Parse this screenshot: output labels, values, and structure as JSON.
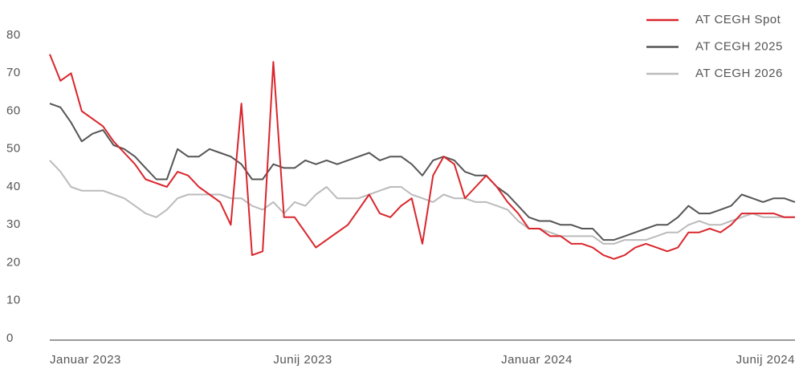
{
  "chart_data": {
    "type": "line",
    "x": [
      0,
      0.25,
      0.5,
      0.75,
      1,
      1.25,
      1.5,
      1.75,
      2,
      2.25,
      2.5,
      2.75,
      3,
      3.25,
      3.5,
      3.75,
      4,
      4.25,
      4.5,
      4.75,
      5,
      5.25,
      5.5,
      5.75,
      6,
      6.25,
      6.5,
      6.75,
      7,
      7.25,
      7.5,
      7.75,
      8,
      8.25,
      8.5,
      8.75,
      9,
      9.25,
      9.5,
      9.75,
      10,
      10.25,
      10.5,
      10.75,
      11,
      11.25,
      11.5,
      11.75,
      12,
      12.25,
      12.5,
      12.75,
      13,
      13.25,
      13.5,
      13.75,
      14,
      14.25,
      14.5,
      14.75,
      15,
      15.25,
      15.5,
      15.75,
      16,
      16.25,
      16.5,
      16.75,
      17,
      17.25,
      17.5
    ],
    "series": [
      {
        "name": "AT CEGH Spot",
        "color": "#d9262c",
        "values": [
          75,
          68,
          70,
          60,
          58,
          56,
          52,
          49,
          46,
          42,
          41,
          40,
          44,
          43,
          40,
          38,
          36,
          30,
          62,
          22,
          23,
          73,
          32,
          32,
          28,
          24,
          26,
          28,
          30,
          34,
          38,
          33,
          32,
          35,
          37,
          25,
          43,
          48,
          46,
          37,
          40,
          43,
          40,
          36,
          33,
          29,
          29,
          27,
          27,
          25,
          25,
          24,
          22,
          21,
          22,
          24,
          25,
          24,
          23,
          24,
          28,
          28,
          29,
          28,
          30,
          33,
          33,
          33,
          33,
          32,
          32
        ]
      },
      {
        "name": "AT CEGH 2025",
        "color": "#555555",
        "values": [
          62,
          61,
          57,
          52,
          54,
          55,
          51,
          50,
          48,
          45,
          42,
          42,
          50,
          48,
          48,
          50,
          49,
          48,
          46,
          42,
          42,
          46,
          45,
          45,
          47,
          46,
          47,
          46,
          47,
          48,
          49,
          47,
          48,
          48,
          46,
          43,
          47,
          48,
          47,
          44,
          43,
          43,
          40,
          38,
          35,
          32,
          31,
          31,
          30,
          30,
          29,
          29,
          26,
          26,
          27,
          28,
          29,
          30,
          30,
          32,
          35,
          33,
          33,
          34,
          35,
          38,
          37,
          36,
          37,
          37,
          36
        ]
      },
      {
        "name": "AT CEGH 2026",
        "color": "#bbbbbb",
        "values": [
          47,
          44,
          40,
          39,
          39,
          39,
          38,
          37,
          35,
          33,
          32,
          34,
          37,
          38,
          38,
          38,
          38,
          37,
          37,
          35,
          34,
          36,
          33,
          36,
          35,
          38,
          40,
          37,
          37,
          37,
          38,
          39,
          40,
          40,
          38,
          37,
          36,
          38,
          37,
          37,
          36,
          36,
          35,
          34,
          31,
          29,
          29,
          28,
          27,
          27,
          27,
          27,
          25,
          25,
          26,
          26,
          26,
          27,
          28,
          28,
          30,
          31,
          30,
          30,
          31,
          32,
          33,
          32,
          32,
          32,
          32
        ]
      }
    ],
    "xlim": [
      0,
      17.5
    ],
    "xticks": [
      {
        "value": 0,
        "label": "Januar 2023"
      },
      {
        "value": 5.25,
        "label": "Junij 2023"
      },
      {
        "value": 10.6,
        "label": "Januar 2024"
      },
      {
        "value": 17.5,
        "label": "Junij 2024"
      }
    ],
    "ylim": [
      0,
      80
    ],
    "yticks": [
      0,
      10,
      20,
      30,
      40,
      50,
      60,
      70,
      80
    ],
    "legend": "top-right"
  }
}
